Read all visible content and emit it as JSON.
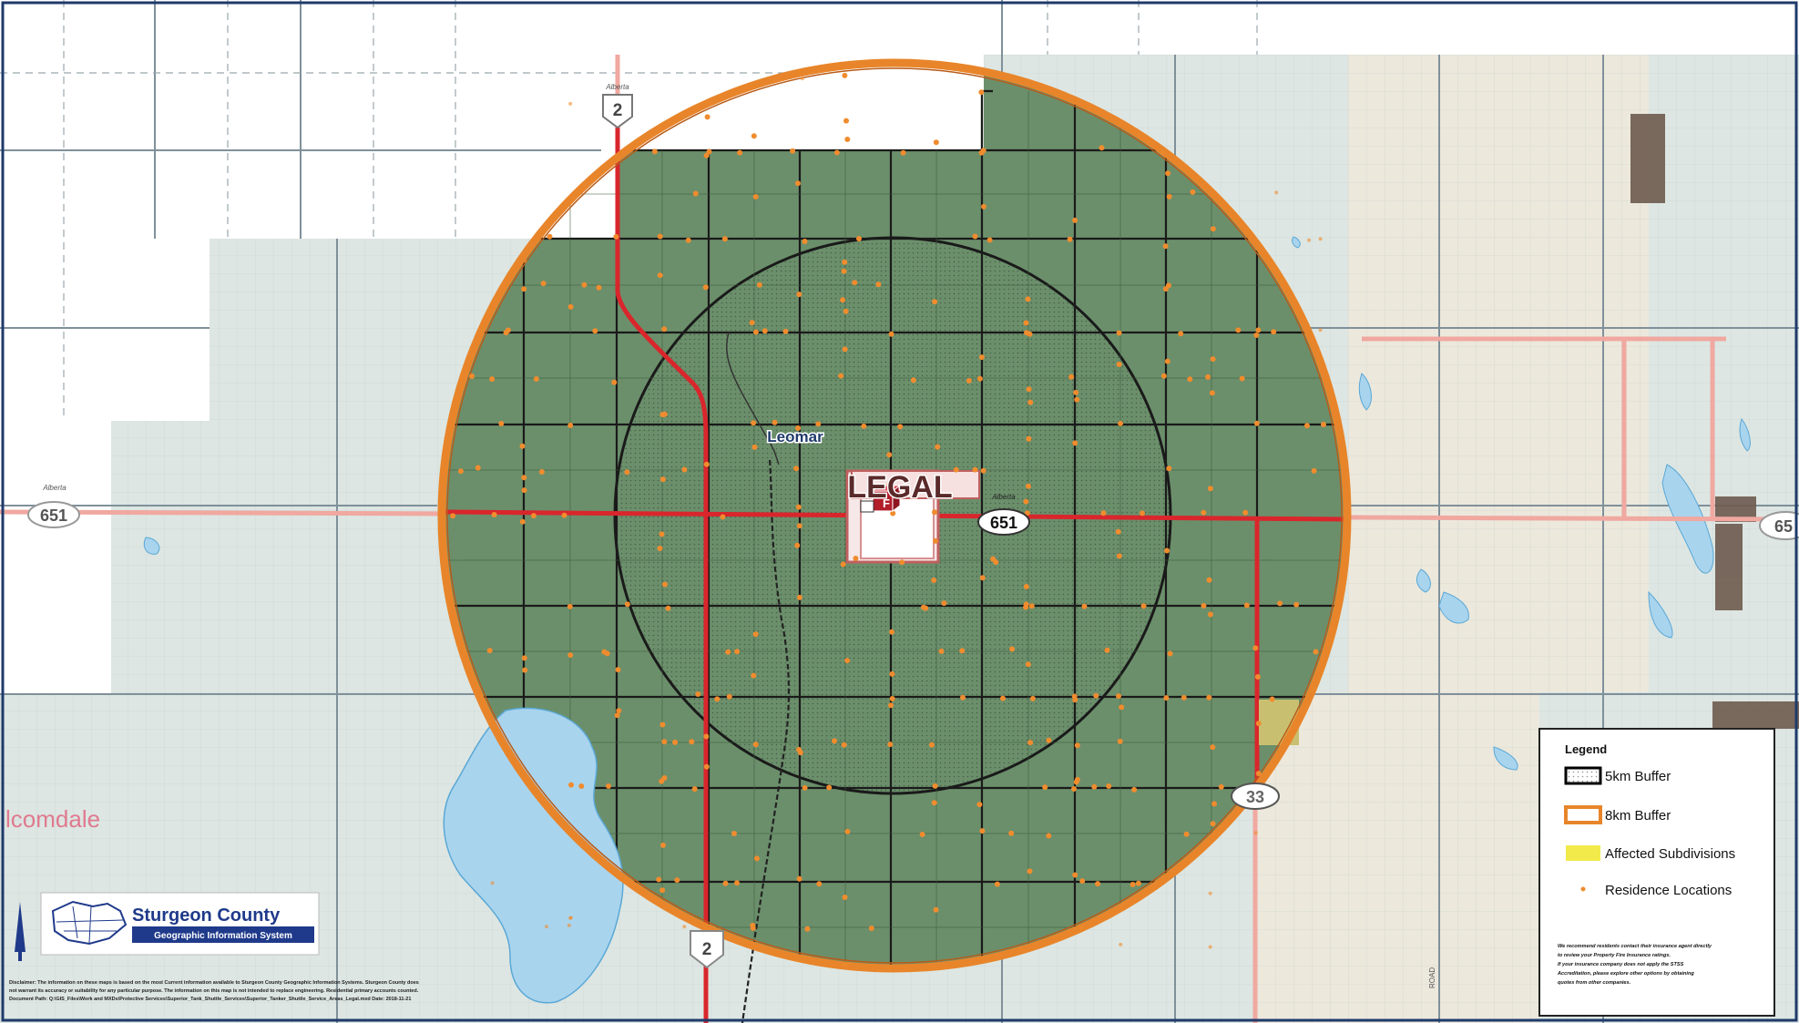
{
  "map": {
    "town_label": "LEGAL",
    "hamlet_label": "Leomar",
    "partial_place_label": "lcomdale",
    "fire_station_letter": "F",
    "road_label": "ROAD",
    "shields": {
      "hwy2_north": "2",
      "hwy2_south": "2",
      "hwy651_west": "651",
      "hwy651_center": "651",
      "hwy651_east": "65",
      "hwy33": "33",
      "province_word": "Alberta"
    },
    "colors": {
      "buffer_fill": "#6b8f6b",
      "buffer_ring": "#e8852a",
      "five_km_ring": "#1a1a1a",
      "primary_highway": "#d9262c",
      "secondary_highway": "#f0a8a0",
      "parcel_lines": "#8a9ba8",
      "parcel_fill_light": "#dde6e2",
      "parcel_fill_beige": "#ece8dc",
      "water": "#a9d4ee",
      "residence_dot": "#f08c2e",
      "affected_subdivision": "#c8c070",
      "developed_area": "#6e5a4e"
    }
  },
  "legend": {
    "title": "Legend",
    "items": [
      {
        "label": "5km Buffer",
        "swatch": "dotted-box"
      },
      {
        "label": "8km Buffer",
        "swatch": "orange-outline-box"
      },
      {
        "label": "Affected Subdivisions",
        "swatch": "yellow-box"
      },
      {
        "label": "Residence Locations",
        "swatch": "orange-dot"
      }
    ],
    "note_lines": [
      "We recommend residents contact their insurance agent directly",
      "to review your Property Fire Insurance ratings.",
      "If your insurance company does not apply the STSS",
      "Accreditation, please explore other options by obtaining",
      "quotes from other companies."
    ]
  },
  "logo": {
    "title": "Sturgeon County",
    "subtitle": "Geographic Information System"
  },
  "disclaimer": {
    "lines": [
      "Disclaimer: The information on these maps is based on the most Current information available to Sturgeon County Geographic Information Systems. Sturgeon County does",
      "not warrant its accuracy or suitability for any particular purpose. The information on this map is not intended to replace engineering. Residential primary accounts counted.",
      "Document Path: Q:\\GIS_Files\\Work and MXDs\\Protective Services\\Superior_Tank_Shuttle_Services\\Superior_Tanker_Shuttle_Service_Areas_Legal.mxd Date: 2018-11-21"
    ]
  }
}
